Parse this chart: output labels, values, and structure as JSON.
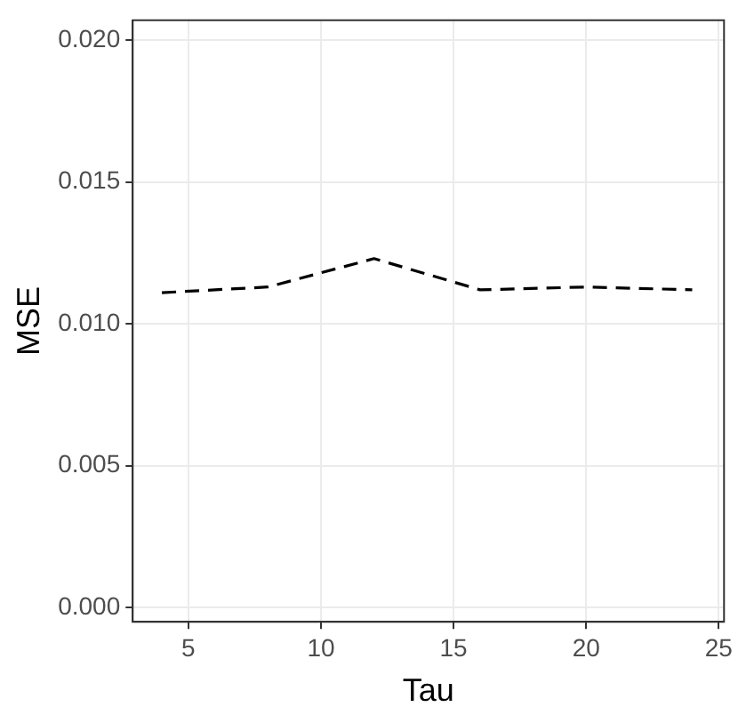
{
  "chart_data": {
    "type": "line",
    "xlabel": "Tau",
    "ylabel": "MSE",
    "x": [
      4,
      8,
      12,
      16,
      20,
      24
    ],
    "series": [
      {
        "color": "#000000",
        "values": [
          0.0111,
          0.0113,
          0.0123,
          0.0112,
          0.0113,
          0.0112
        ]
      }
    ],
    "xlim": [
      2.9,
      25.2
    ],
    "xticks": [
      5,
      10,
      15,
      20,
      25
    ],
    "ylim": [
      -0.0005,
      0.0207
    ],
    "yticks": [
      {
        "value": 0,
        "label": "0.000"
      },
      {
        "value": 0.005,
        "label": "0.005"
      },
      {
        "value": 0.01,
        "label": "0.010"
      },
      {
        "value": 0.015,
        "label": "0.015"
      },
      {
        "value": 0.02,
        "label": "0.020"
      }
    ],
    "grid": true,
    "legend": false,
    "marker": "none",
    "line_style": "dashed"
  }
}
